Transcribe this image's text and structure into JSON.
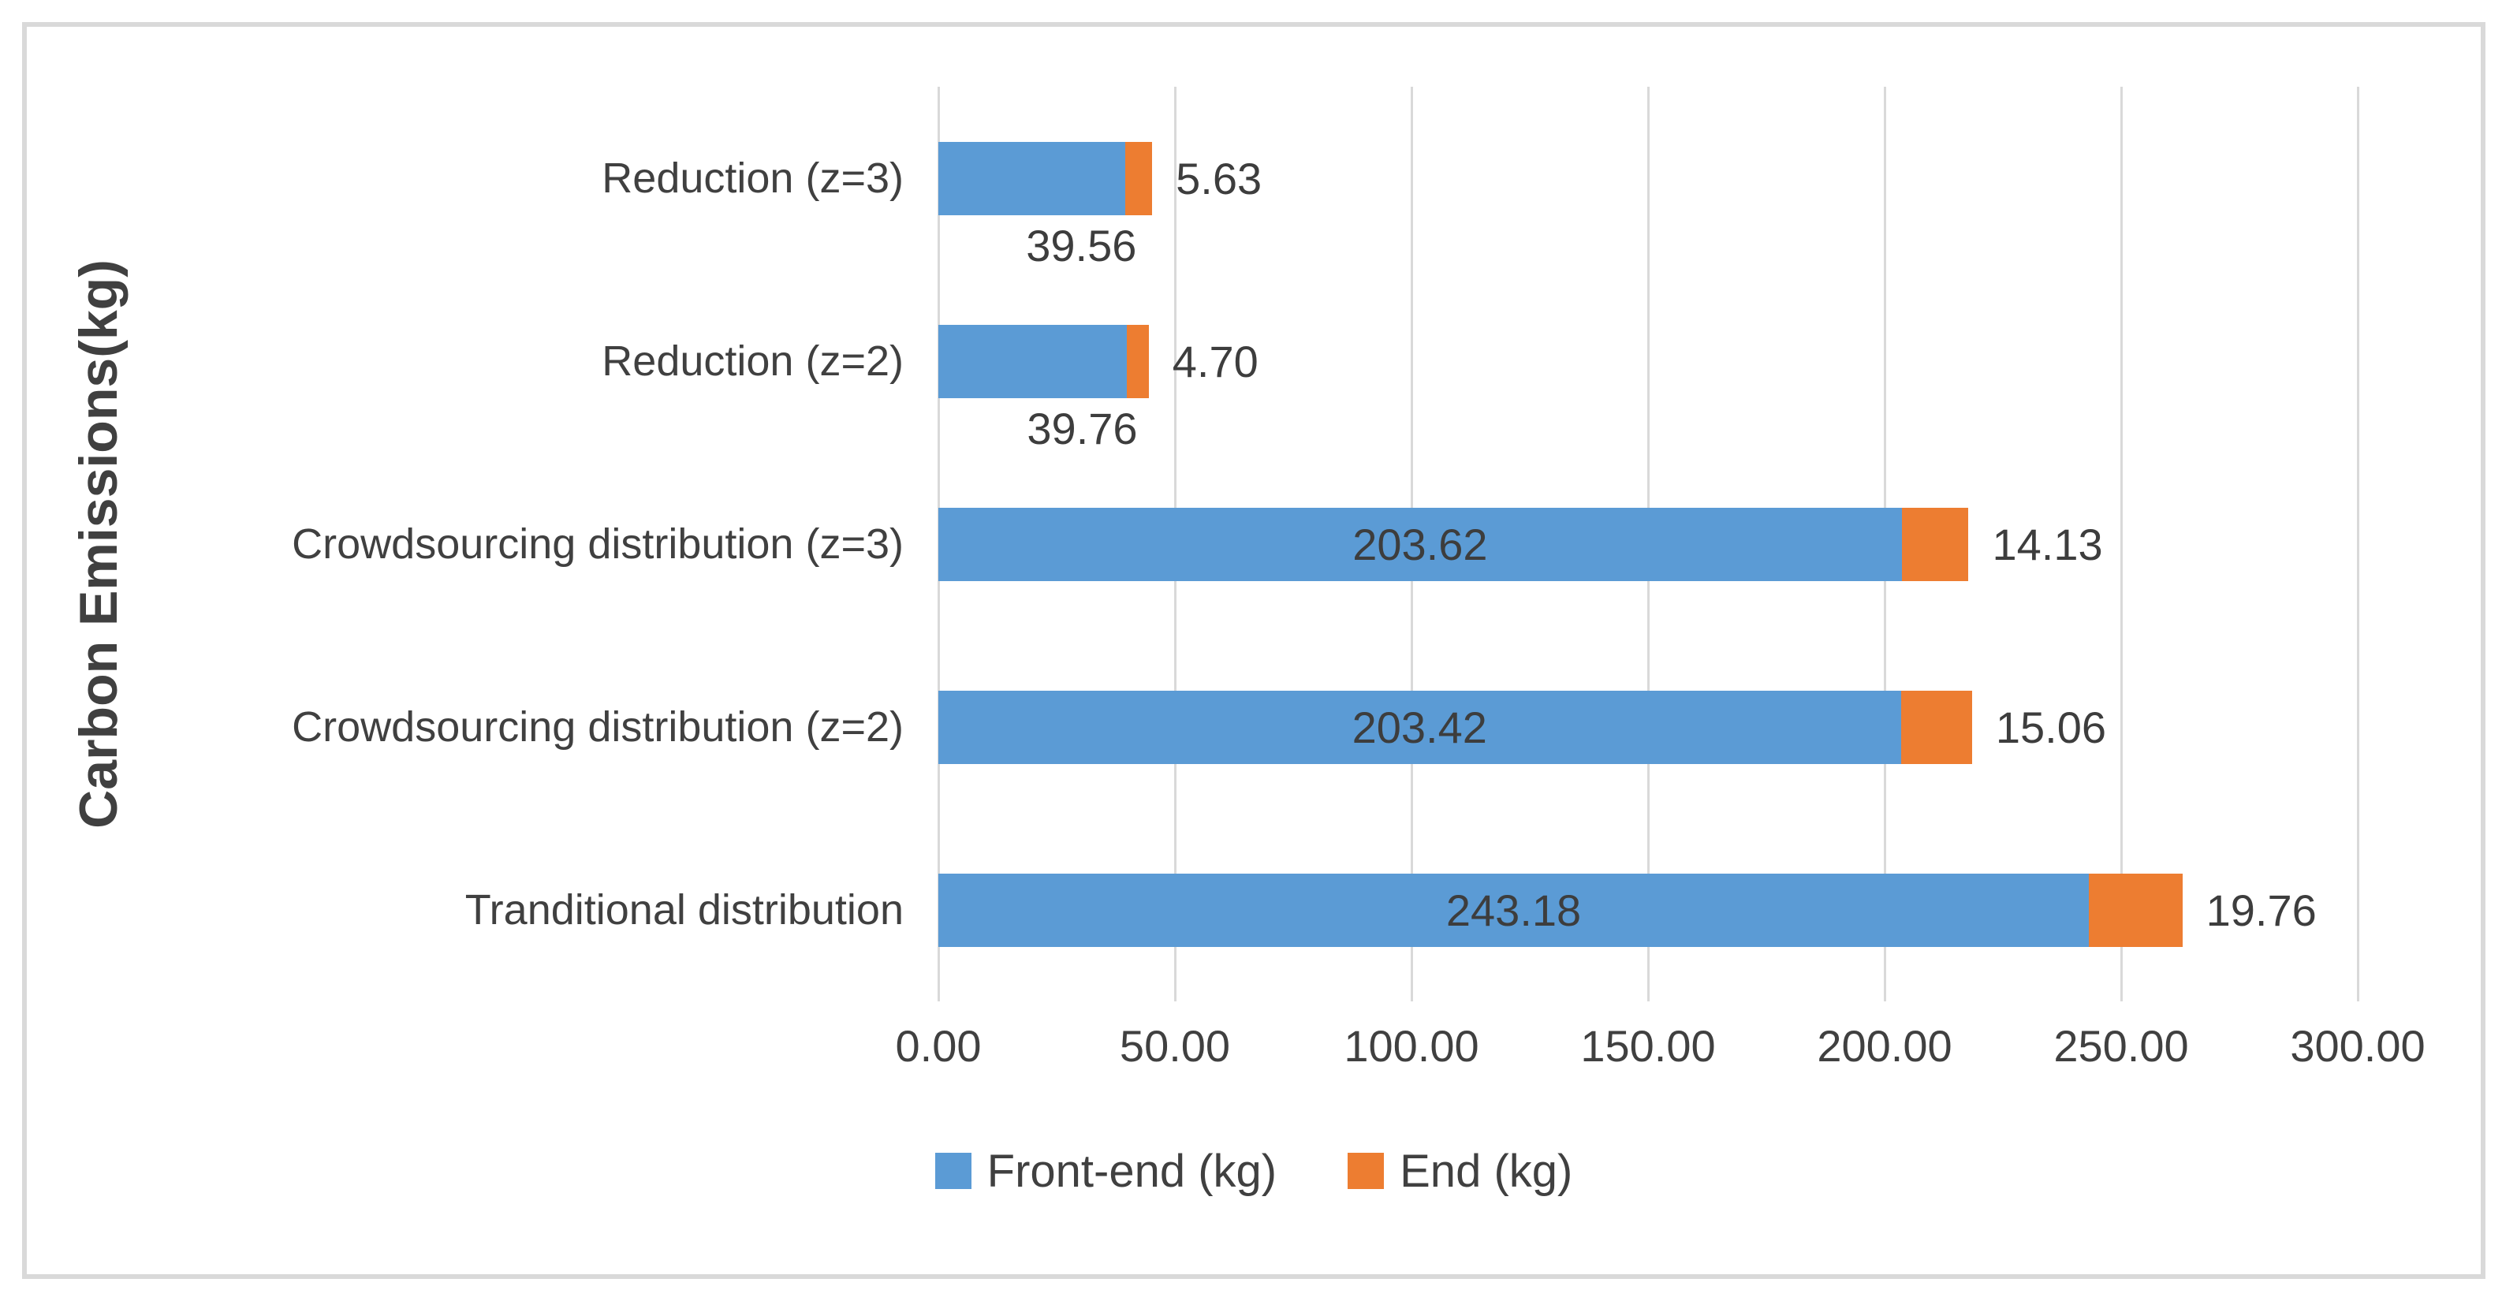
{
  "chart_data": {
    "type": "bar",
    "orientation": "horizontal",
    "stacked": true,
    "title": "",
    "xlabel": "",
    "ylabel": "Carbon Emissions(kg)",
    "categories": [
      "Reduction (z=3)",
      "Reduction (z=2)",
      "Crowdsourcing distribution (z=3)",
      "Crowdsourcing distribution (z=2)",
      "Tranditional distribution"
    ],
    "series": [
      {
        "name": "Front-end (kg)",
        "color": "#5B9BD5",
        "values": [
          39.56,
          39.76,
          203.62,
          203.42,
          243.18
        ],
        "labels": [
          "39.56",
          "39.76",
          "203.62",
          "203.42",
          "243.18"
        ]
      },
      {
        "name": "End (kg)",
        "color": "#ED7D31",
        "values": [
          5.63,
          4.7,
          14.13,
          15.06,
          19.76
        ],
        "labels": [
          "5.63",
          "4.70",
          "14.13",
          "15.06",
          "19.76"
        ]
      }
    ],
    "xlim": [
      0,
      300
    ],
    "x_tick_values": [
      0,
      50,
      100,
      150,
      200,
      250,
      300
    ],
    "x_ticks": [
      "0.00",
      "50.00",
      "100.00",
      "150.00",
      "200.00",
      "250.00",
      "300.00"
    ],
    "grid": "vertical-only",
    "legend_position": "bottom-center",
    "colors": {
      "grid": "#D9D9D9",
      "frame_border": "#D9D9D9",
      "text": "#404040",
      "background": "#FFFFFF"
    }
  }
}
